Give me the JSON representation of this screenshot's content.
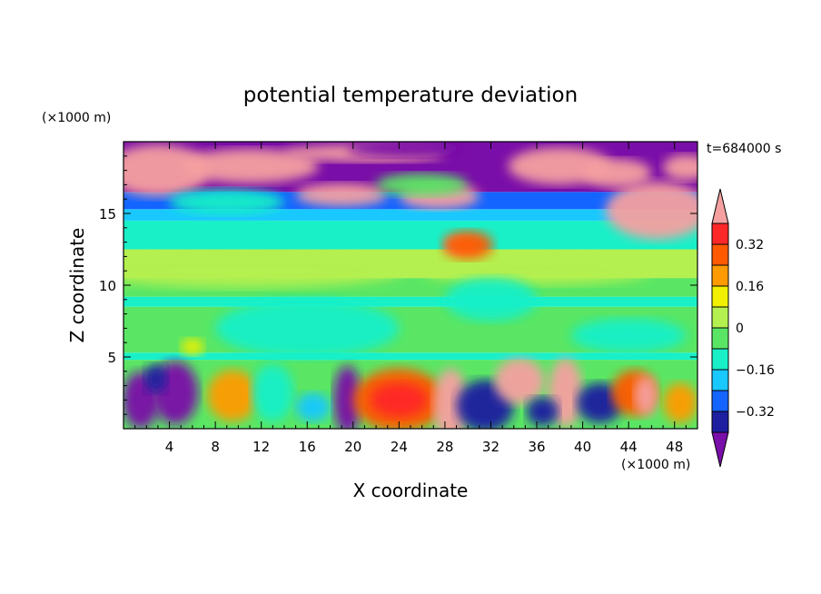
{
  "chart_data": {
    "type": "heatmap",
    "title": "potential temperature deviation",
    "xlabel": "X coordinate",
    "ylabel": "Z coordinate",
    "x_unit": "(×1000 m)",
    "y_unit": "(×1000 m)",
    "time_label": "t=684000 s",
    "xlim": [
      0,
      50
    ],
    "ylim": [
      0,
      20
    ],
    "x_ticks": [
      4,
      8,
      12,
      16,
      20,
      24,
      28,
      32,
      36,
      40,
      44,
      48
    ],
    "y_ticks": [
      5,
      10,
      15
    ],
    "colorbar": {
      "levels": [
        -0.4,
        -0.32,
        -0.24,
        -0.16,
        -0.08,
        0,
        0.08,
        0.16,
        0.24,
        0.32,
        0.4
      ],
      "tick_labels": [
        "0.32",
        "0.16",
        "0",
        "−0.16",
        "−0.32"
      ],
      "tick_values": [
        0.32,
        0.16,
        0,
        -0.16,
        -0.32
      ],
      "colors": [
        "#7a0ea8",
        "#1e1ea0",
        "#1464ff",
        "#19c8ff",
        "#19f0c8",
        "#5ae664",
        "#b4f050",
        "#f0f000",
        "#ff9b00",
        "#ff5a00",
        "#ff2828",
        "#f5a0a0"
      ],
      "extend": "both"
    }
  }
}
